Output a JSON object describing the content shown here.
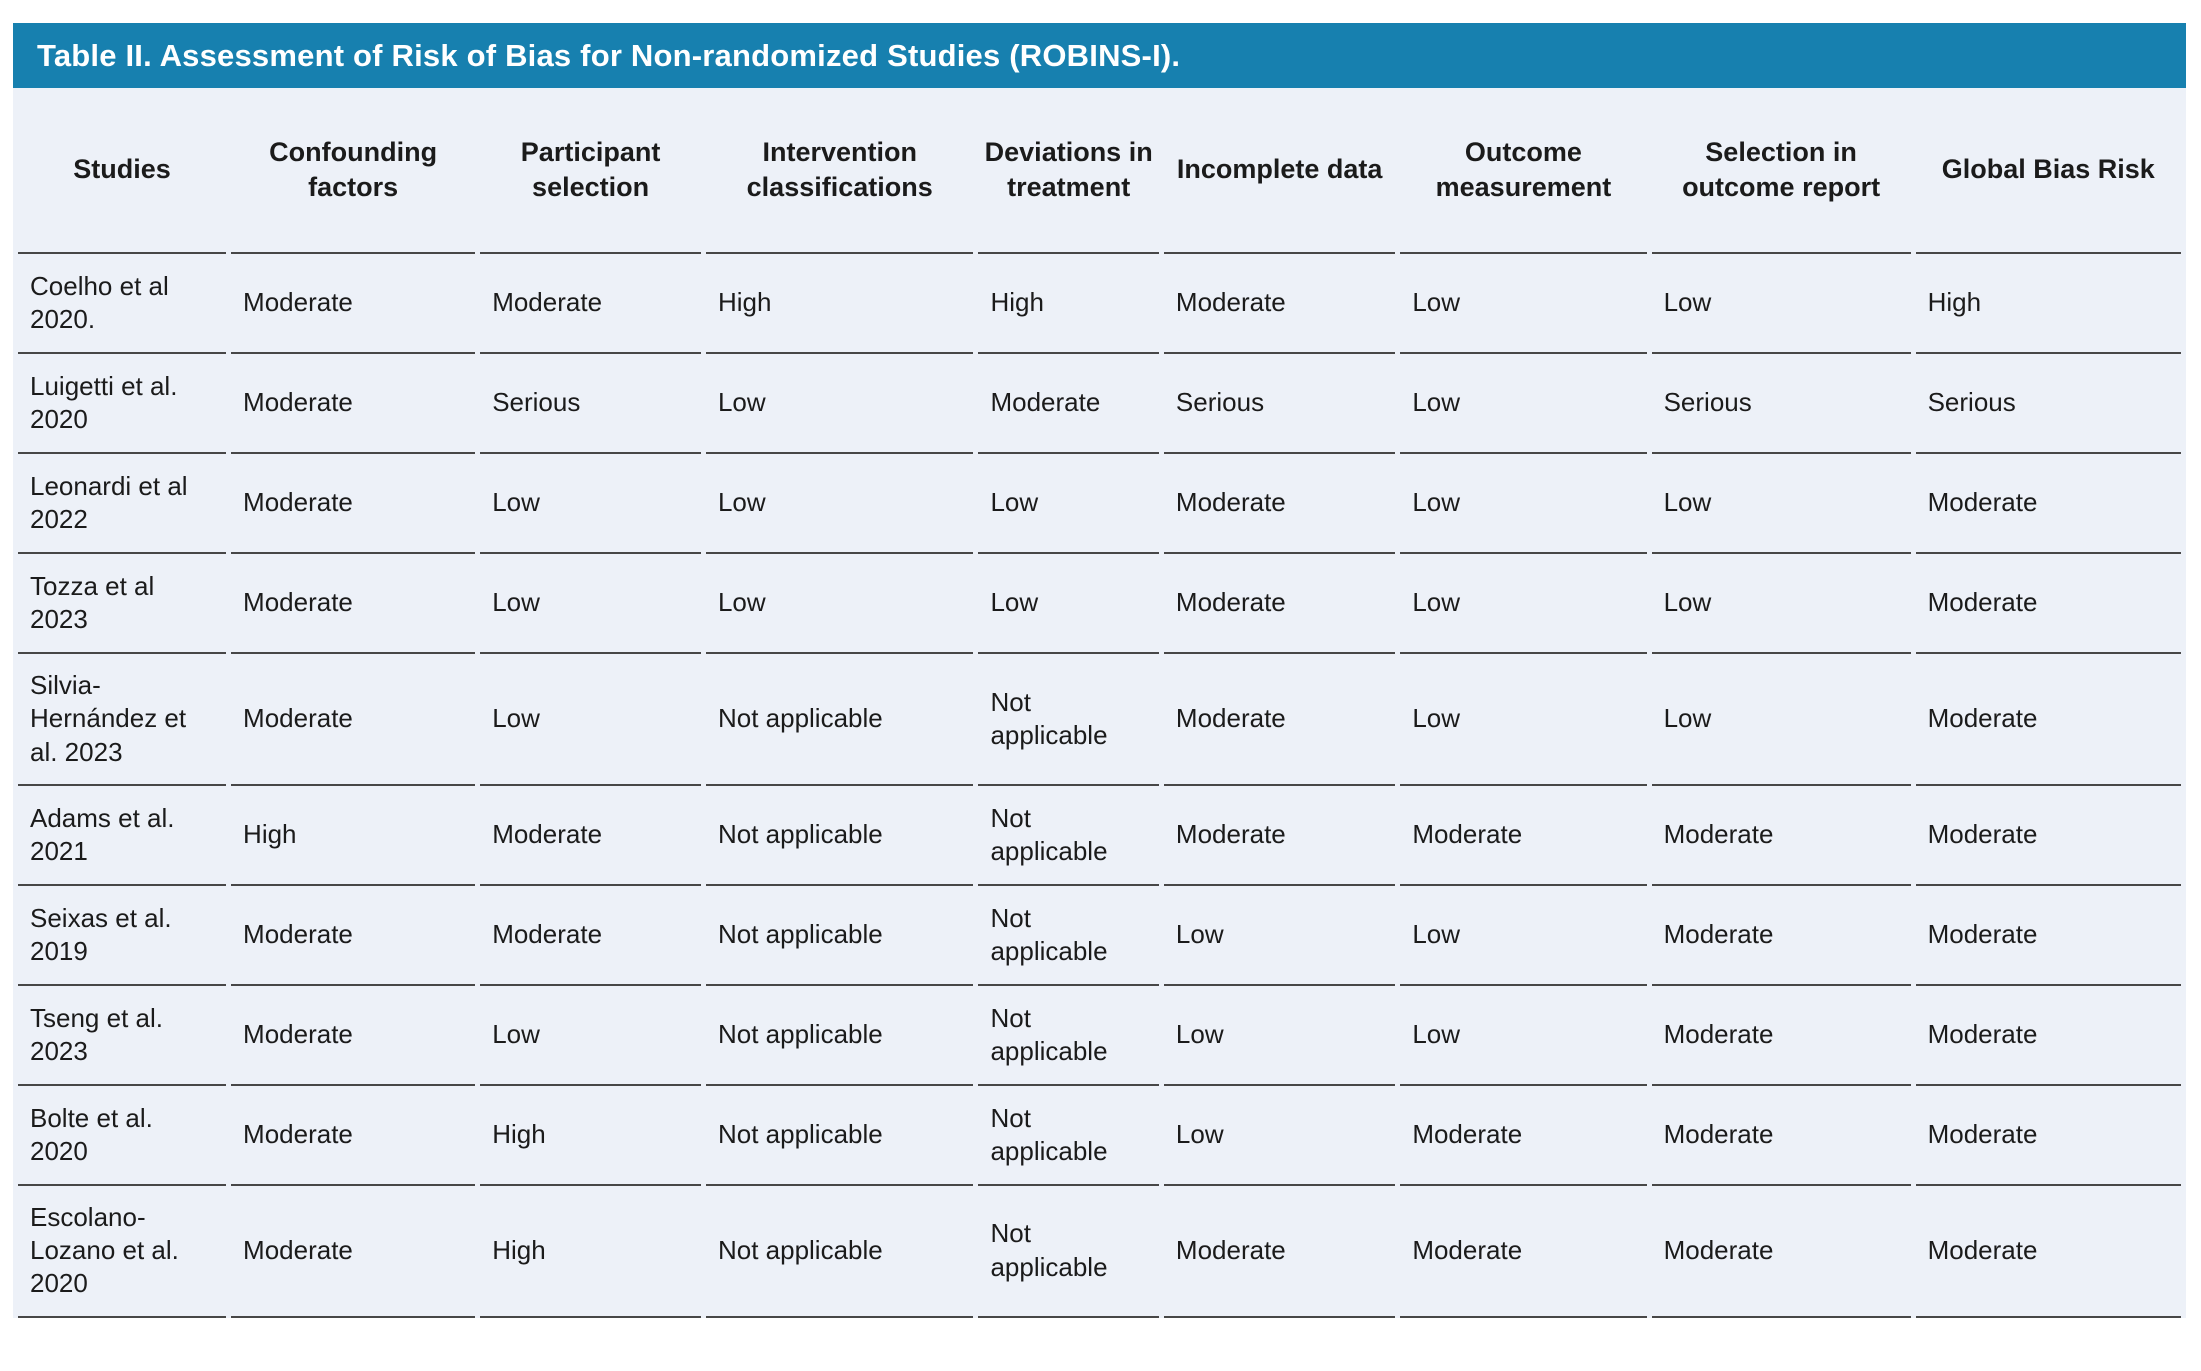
{
  "title": "Table II. Assessment of Risk of Bias for Non-randomized Studies (ROBINS-I).",
  "colors": {
    "title_bar_background": "#1780AF",
    "title_text": "#ffffff",
    "table_background": "#EDF1F8",
    "divider_line": "#474747",
    "body_text": "#1b1b1b"
  },
  "table": {
    "columns": [
      "Studies",
      "Confounding factors",
      "Participant selection",
      "Intervention classifications",
      "Deviations in treatment",
      "Incomplete data",
      "Outcome measurement",
      "Selection in outcome report",
      "Global Bias Risk"
    ],
    "rows": [
      {
        "study": "Coelho et al 2020.",
        "values": [
          "Moderate",
          "Moderate",
          "High",
          "High",
          "Moderate",
          "Low",
          "Low",
          "High"
        ]
      },
      {
        "study": "Luigetti et al. 2020",
        "values": [
          "Moderate",
          "Serious",
          "Low",
          "Moderate",
          "Serious",
          "Low",
          "Serious",
          "Serious"
        ]
      },
      {
        "study": "Leonardi et al 2022",
        "values": [
          "Moderate",
          "Low",
          "Low",
          "Low",
          "Moderate",
          "Low",
          "Low",
          "Moderate"
        ]
      },
      {
        "study": "Tozza et al 2023",
        "values": [
          "Moderate",
          "Low",
          "Low",
          "Low",
          "Moderate",
          "Low",
          "Low",
          "Moderate"
        ]
      },
      {
        "study": "Silvia-Hernández et al. 2023",
        "values": [
          "Moderate",
          "Low",
          "Not applicable",
          "Not applicable",
          "Moderate",
          "Low",
          "Low",
          "Moderate"
        ]
      },
      {
        "study": "Adams et al. 2021",
        "values": [
          "High",
          "Moderate",
          "Not applicable",
          "Not applicable",
          "Moderate",
          "Moderate",
          "Moderate",
          "Moderate"
        ]
      },
      {
        "study": "Seixas et al. 2019",
        "values": [
          "Moderate",
          "Moderate",
          "Not applicable",
          "Not applicable",
          "Low",
          "Low",
          "Moderate",
          "Moderate"
        ]
      },
      {
        "study": "Tseng et al. 2023",
        "values": [
          "Moderate",
          "Low",
          "Not applicable",
          "Not applicable",
          "Low",
          "Low",
          "Moderate",
          "Moderate"
        ]
      },
      {
        "study": "Bolte et al. 2020",
        "values": [
          "Moderate",
          "High",
          "Not applicable",
          "Not applicable",
          "Low",
          "Moderate",
          "Moderate",
          "Moderate"
        ]
      },
      {
        "study": "Escolano-Lozano et al. 2020",
        "values": [
          "Moderate",
          "High",
          "Not applicable",
          "Not applicable",
          "Moderate",
          "Moderate",
          "Moderate",
          "Moderate"
        ]
      }
    ]
  }
}
